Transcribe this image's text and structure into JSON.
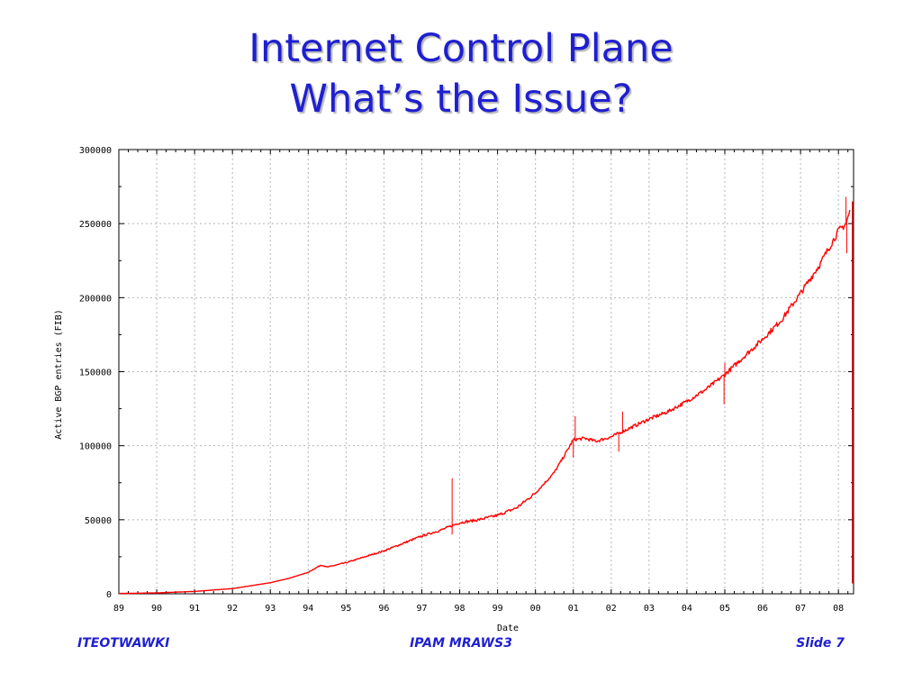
{
  "slide": {
    "title_line1": "Internet Control Plane",
    "title_line2": "What’s the Issue?",
    "footer_left": "ITEOTWAWKI",
    "footer_center": "IPAM MRAWS3",
    "footer_right": "Slide 7",
    "title_color": "#1f1fd0"
  },
  "chart_data": {
    "type": "line",
    "title": "",
    "xlabel": "Date",
    "ylabel": "Active BGP entries (FIB)",
    "x_ticks": [
      "89",
      "90",
      "91",
      "92",
      "93",
      "94",
      "95",
      "96",
      "97",
      "98",
      "99",
      "00",
      "01",
      "02",
      "03",
      "04",
      "05",
      "06",
      "07",
      "08"
    ],
    "y_ticks": [
      "0",
      "50000",
      "100000",
      "150000",
      "200000",
      "250000",
      "300000"
    ],
    "xlim": [
      1989.0,
      2008.4
    ],
    "ylim": [
      0,
      300000
    ],
    "grid": true,
    "line_color": "#ff0000",
    "series": [
      {
        "x": [
          1989.0,
          1990.0,
          1991.0,
          1992.0,
          1993.0,
          1993.5,
          1994.0,
          1994.2,
          1994.35,
          1994.5,
          1995.0,
          1995.5,
          1996.0,
          1996.5,
          1997.0,
          1997.5,
          1997.8,
          1998.0,
          1998.5,
          1999.0,
          1999.5,
          2000.0,
          2000.5,
          2000.8,
          2001.0,
          2001.3,
          2001.6,
          2002.0,
          2002.5,
          2003.0,
          2003.5,
          2004.0,
          2004.5,
          2005.0,
          2005.5,
          2006.0,
          2006.5,
          2007.0,
          2007.5,
          2008.0,
          2008.2,
          2008.3
        ],
        "y": [
          200,
          600,
          1600,
          3500,
          7500,
          10500,
          14500,
          17500,
          19500,
          18000,
          21000,
          25000,
          29000,
          34000,
          39000,
          43000,
          46000,
          48000,
          50000,
          53000,
          58000,
          68000,
          82000,
          95000,
          104000,
          105000,
          103000,
          106000,
          112000,
          118000,
          123000,
          130000,
          138000,
          148000,
          160000,
          172000,
          185000,
          203000,
          222000,
          245000,
          250000,
          258000
        ]
      }
    ],
    "noise_markers": [
      {
        "x": 1997.8,
        "y": 78000
      },
      {
        "x": 1997.8,
        "y": 40000
      },
      {
        "x": 2001.05,
        "y": 120000
      },
      {
        "x": 2001.0,
        "y": 92000
      },
      {
        "x": 2002.3,
        "y": 123000
      },
      {
        "x": 2002.2,
        "y": 96000
      },
      {
        "x": 2005.0,
        "y": 156000
      },
      {
        "x": 2004.98,
        "y": 128000
      },
      {
        "x": 2008.2,
        "y": 268000
      },
      {
        "x": 2008.22,
        "y": 230000
      }
    ],
    "drop_line": {
      "x": 2008.38,
      "y_top": 265000,
      "y_bottom": 7000
    }
  }
}
